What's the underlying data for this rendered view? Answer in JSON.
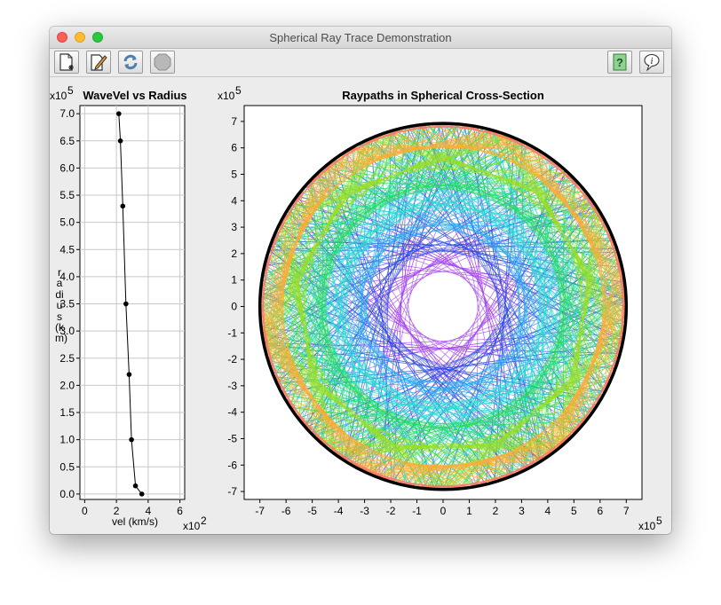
{
  "window": {
    "title": "Spherical Ray Trace Demonstration"
  },
  "toolbar": {
    "left": [
      {
        "name": "new-document-button",
        "icon": "new-document-icon"
      },
      {
        "name": "edit-button",
        "icon": "pencil-icon"
      },
      {
        "name": "refresh-button",
        "icon": "refresh-icon"
      },
      {
        "name": "stop-button",
        "icon": "stop-icon"
      }
    ],
    "right": [
      {
        "name": "help-button",
        "icon": "question-icon"
      },
      {
        "name": "info-button",
        "icon": "info-balloon-icon"
      }
    ]
  },
  "left_plot": {
    "title": "WaveVel vs Radius",
    "y_exp_base": "x10",
    "y_exp_power": "5",
    "x_exp_base": "x10",
    "x_exp_power": "2",
    "xlabel": "vel (km/s)",
    "ylabel": "radius  (km)",
    "y_ticks": [
      "7.0",
      "6.5",
      "6.0",
      "5.5",
      "5.0",
      "4.5",
      "4.0",
      "3.5",
      "3.0",
      "2.5",
      "2.0",
      "1.5",
      "1.0",
      "0.5",
      "0.0"
    ],
    "x_ticks": [
      "0",
      "2",
      "4",
      "6"
    ]
  },
  "right_plot": {
    "title": "Raypaths in Spherical Cross-Section",
    "y_exp_base": "x10",
    "y_exp_power": "5",
    "x_exp_base": "x10",
    "x_exp_power": "5",
    "y_ticks": [
      "7",
      "6",
      "5",
      "4",
      "3",
      "2",
      "1",
      "0",
      "-1",
      "-2",
      "-3",
      "-4",
      "-5",
      "-6",
      "-7"
    ],
    "x_ticks": [
      "-7",
      "-6",
      "-5",
      "-4",
      "-3",
      "-2",
      "-1",
      "0",
      "1",
      "2",
      "3",
      "4",
      "5",
      "6",
      "7"
    ]
  },
  "chart_data": [
    {
      "type": "line",
      "title": "WaveVel vs Radius",
      "xlabel": "vel (km/s)",
      "ylabel": "radius  (km)",
      "x_units": "x10^2",
      "y_units": "x10^5",
      "xlim": [
        -0.3,
        6.3
      ],
      "ylim": [
        -0.1,
        7.15
      ],
      "series": [
        {
          "x": [
            2.15,
            2.25,
            2.4,
            2.6,
            2.8,
            2.95,
            3.2,
            3.6
          ],
          "y": [
            7.0,
            6.5,
            5.3,
            3.5,
            2.2,
            1.0,
            0.15,
            0.0
          ]
        }
      ],
      "grid": true,
      "marker_color": "#000000"
    },
    {
      "type": "line",
      "title": "Raypaths in Spherical Cross-Section",
      "x_units": "x10^5",
      "y_units": "x10^5",
      "xlim": [
        -7.6,
        7.6
      ],
      "ylim": [
        -7.3,
        7.6
      ],
      "outer_radius": 7.0,
      "shadow_zone_radius": 1.6,
      "ray_colors": [
        "#9933ee",
        "#2244dd",
        "#22aaee",
        "#22ddcc",
        "#22dd55",
        "#99dd22",
        "#ffaa33",
        "#ff7766"
      ],
      "grid": false
    }
  ]
}
